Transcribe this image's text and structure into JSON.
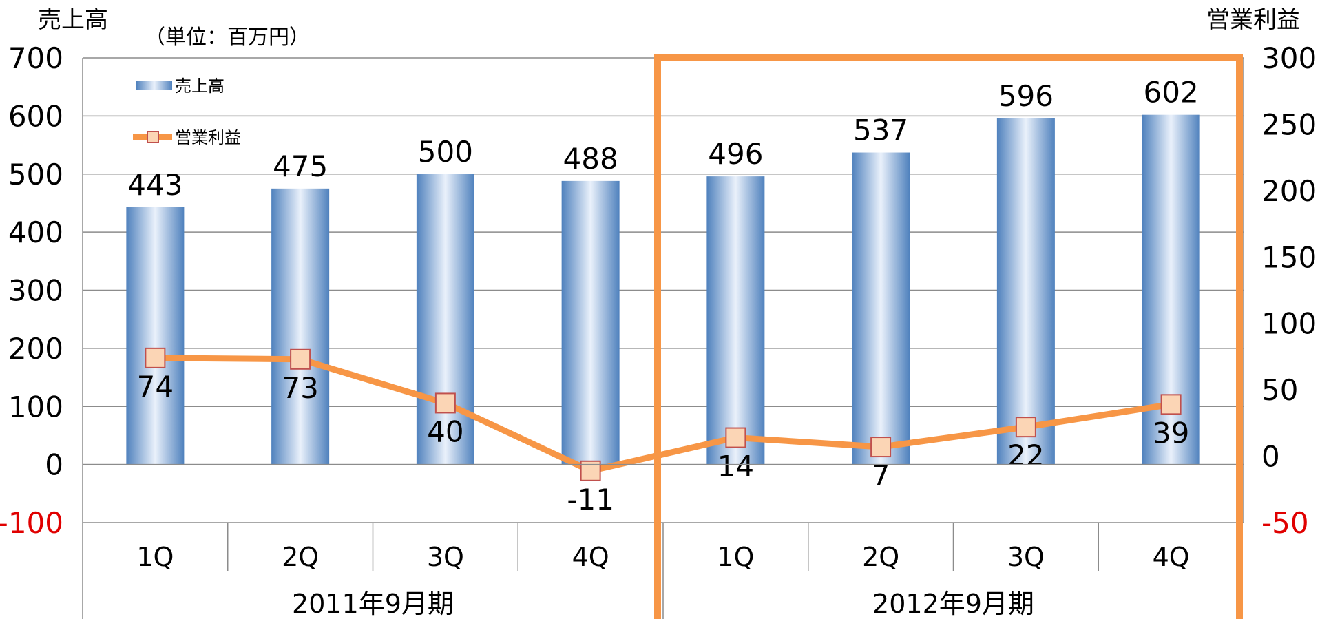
{
  "chart_data": {
    "type": "bar",
    "unit_note": "（単位：百万円）",
    "y_left_title": "売上高",
    "y_right_title": "営業利益",
    "y_left_ticks": [
      "700",
      "600",
      "500",
      "400",
      "300",
      "200",
      "100",
      "0",
      "-100"
    ],
    "y_right_ticks": [
      "300",
      "250",
      "200",
      "150",
      "100",
      "50",
      "0",
      "-50"
    ],
    "ylim_left": [
      -100,
      700
    ],
    "ylim_right": [
      -50,
      300
    ],
    "categories": [
      "1Q",
      "2Q",
      "3Q",
      "4Q",
      "1Q",
      "2Q",
      "3Q",
      "4Q"
    ],
    "groups": [
      {
        "label": "2011年9月期",
        "span": 4
      },
      {
        "label": "2012年9月期",
        "span": 4
      }
    ],
    "highlighted_group": 1,
    "series": [
      {
        "name": "売上高",
        "type": "bar",
        "axis": "left",
        "values": [
          443,
          475,
          500,
          488,
          496,
          537,
          596,
          602
        ],
        "color": "#4f81bd"
      },
      {
        "name": "営業利益",
        "type": "line",
        "axis": "right",
        "values": [
          74,
          73,
          40,
          -11,
          14,
          7,
          22,
          39
        ],
        "color": "#f79646"
      }
    ],
    "grid": true,
    "legend_position": "top-left"
  }
}
